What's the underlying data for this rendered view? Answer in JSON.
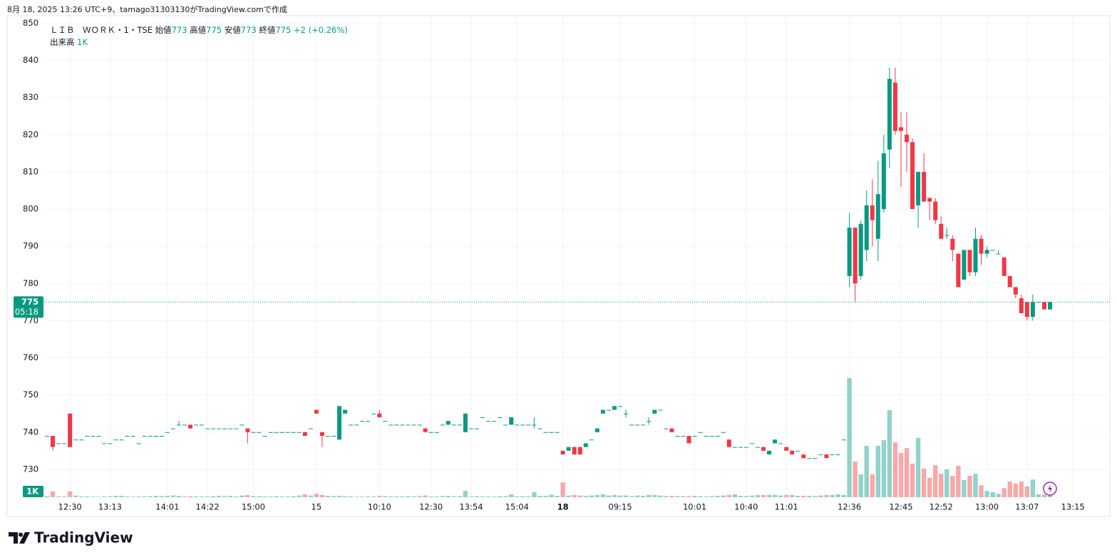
{
  "chart_data": {
    "type": "candlestick",
    "header": "8月 18, 2025 13:26 UTC+9、tamago31303130がTradingView.comで作成",
    "symbol": "ＬＩＢ　ＷＯＲＫ・1・TSE",
    "open_label": "始値",
    "high_label": "高値",
    "low_label": "安値",
    "close_label": "終値",
    "change": "+2 (+0.26%)",
    "volume_label": "出来高",
    "last_volume_label": "1K",
    "countdown": "05:18",
    "logo": "TradingView",
    "up_color": "#089981",
    "down_color": "#f23645",
    "up_volume_color": "#92d2c8",
    "down_volume_color": "#f7a8a8",
    "ylim": [
      722.5,
      852
    ],
    "yticks": [
      730,
      740,
      750,
      760,
      770,
      780,
      790,
      800,
      810,
      820,
      830,
      840,
      850
    ],
    "vlim": [
      0,
      25000
    ],
    "grid": true,
    "xticks": [
      {
        "value": 4,
        "label": "12:30"
      },
      {
        "value": 11,
        "label": "13:13"
      },
      {
        "value": 21,
        "label": "14:01"
      },
      {
        "value": 28,
        "label": "14:22"
      },
      {
        "value": 36,
        "label": "15:00"
      },
      {
        "value": 47,
        "label": "15"
      },
      {
        "value": 58,
        "label": "10:10"
      },
      {
        "value": 67,
        "label": "12:30"
      },
      {
        "value": 74,
        "label": "13:54"
      },
      {
        "value": 82,
        "label": "15:04"
      },
      {
        "value": 90,
        "label": "18",
        "bold": true
      },
      {
        "value": 100,
        "label": "09:15"
      },
      {
        "value": 113,
        "label": "10:01"
      },
      {
        "value": 122,
        "label": "10:40"
      },
      {
        "value": 129,
        "label": "11:01"
      },
      {
        "value": 140,
        "label": "12:36"
      },
      {
        "value": 149,
        "label": "12:45"
      },
      {
        "value": 156,
        "label": "12:52"
      },
      {
        "value": 164,
        "label": "13:00"
      },
      {
        "value": 171,
        "label": "13:07"
      },
      {
        "value": 179,
        "label": "13:15"
      }
    ],
    "open": [
      739,
      739,
      737,
      737,
      745,
      738,
      738,
      739,
      739,
      739,
      737,
      737,
      738,
      738,
      739,
      739,
      737,
      739,
      739,
      739,
      739,
      740,
      741,
      742,
      742,
      742,
      742,
      742,
      741,
      741,
      741,
      741,
      741,
      741,
      742,
      741,
      740,
      740,
      739,
      740,
      740,
      740,
      740,
      740,
      740,
      740,
      741,
      746,
      740,
      739,
      739,
      738,
      745,
      742,
      742,
      743,
      743,
      745,
      745,
      743,
      742,
      742,
      742,
      742,
      742,
      742,
      741,
      740,
      740,
      742,
      742,
      742,
      742,
      740,
      741,
      741,
      744,
      743,
      743,
      744,
      742,
      742,
      742,
      742,
      742,
      742,
      741,
      740,
      740,
      740,
      735,
      735,
      736,
      736,
      736,
      738,
      740,
      745,
      746,
      746,
      747,
      745,
      742,
      742,
      742,
      743,
      745,
      746,
      741,
      741,
      739,
      739,
      739,
      739,
      740,
      739,
      739,
      739,
      740,
      738,
      736,
      736,
      736,
      737,
      736,
      736,
      734,
      737,
      737,
      736,
      735,
      735,
      734,
      733,
      733,
      734,
      734,
      734,
      734,
      738,
      782,
      795,
      782,
      789,
      801,
      792,
      800,
      816,
      834,
      822,
      820,
      818,
      801,
      810,
      803,
      802,
      796,
      793,
      792,
      788,
      781,
      789,
      783,
      792,
      788,
      789,
      788,
      787,
      782,
      779,
      776,
      775,
      771,
      775,
      775,
      773
    ],
    "high": [
      739,
      739,
      737,
      737,
      745,
      738,
      738,
      739,
      739,
      739,
      737,
      737,
      738,
      738,
      739,
      739,
      737,
      739,
      739,
      739,
      739,
      740,
      741,
      743,
      742,
      742,
      742,
      742,
      741,
      741,
      741,
      741,
      741,
      741,
      742,
      741,
      740,
      740,
      739,
      740,
      740,
      740,
      740,
      740,
      740,
      740,
      741,
      746,
      740,
      739,
      739,
      747,
      746,
      742,
      742,
      743,
      743,
      745,
      746,
      743,
      742,
      742,
      742,
      742,
      742,
      742,
      741,
      740,
      740,
      742,
      743,
      742,
      742,
      745,
      741,
      741,
      744,
      743,
      743,
      744,
      742,
      744,
      742,
      742,
      742,
      744,
      741,
      740,
      740,
      740,
      735,
      736,
      736,
      736,
      737,
      738,
      741,
      746,
      746,
      747,
      747,
      746,
      742,
      742,
      742,
      744,
      746,
      746,
      741,
      741,
      739,
      739,
      739,
      739,
      740,
      739,
      739,
      739,
      740,
      738,
      736,
      736,
      736,
      737,
      736,
      736,
      735,
      738,
      737,
      736,
      735,
      735,
      734,
      733,
      733,
      734,
      734,
      734,
      734,
      738,
      799,
      795,
      797,
      805,
      808,
      813,
      820,
      838,
      838,
      826,
      826,
      819,
      810,
      815,
      803,
      803,
      798,
      795,
      793,
      788,
      789,
      789,
      795,
      793,
      790,
      789,
      789,
      787,
      782,
      779,
      777,
      775,
      777,
      775,
      775,
      775
    ],
    "low": [
      739,
      735,
      737,
      737,
      736,
      738,
      738,
      739,
      739,
      739,
      737,
      737,
      738,
      738,
      739,
      739,
      737,
      739,
      739,
      739,
      739,
      740,
      741,
      742,
      742,
      741,
      742,
      742,
      741,
      741,
      741,
      741,
      741,
      741,
      742,
      737,
      740,
      740,
      739,
      740,
      740,
      740,
      740,
      740,
      740,
      739,
      741,
      745,
      736,
      739,
      739,
      738,
      745,
      742,
      742,
      743,
      743,
      745,
      744,
      743,
      742,
      742,
      742,
      742,
      742,
      742,
      740,
      740,
      740,
      742,
      742,
      742,
      742,
      740,
      741,
      741,
      744,
      743,
      743,
      744,
      742,
      742,
      742,
      742,
      742,
      741,
      741,
      740,
      740,
      740,
      734,
      735,
      734,
      734,
      736,
      738,
      740,
      745,
      746,
      746,
      747,
      744,
      742,
      742,
      742,
      742,
      745,
      746,
      741,
      740,
      739,
      739,
      737,
      739,
      740,
      739,
      739,
      739,
      740,
      736,
      736,
      736,
      736,
      737,
      736,
      735,
      734,
      737,
      737,
      735,
      734,
      735,
      733,
      733,
      733,
      734,
      733,
      734,
      734,
      738,
      779,
      775,
      781,
      786,
      790,
      786,
      799,
      811,
      820,
      806,
      810,
      800,
      795,
      802,
      797,
      796,
      792,
      792,
      786,
      779,
      781,
      782,
      782,
      785,
      787,
      789,
      788,
      782,
      779,
      776,
      772,
      770,
      770,
      775,
      773,
      773
    ],
    "close": [
      739,
      736,
      737,
      737,
      736,
      738,
      738,
      739,
      739,
      739,
      737,
      737,
      738,
      738,
      739,
      739,
      737,
      739,
      739,
      739,
      739,
      740,
      741,
      742,
      742,
      741,
      742,
      742,
      741,
      741,
      741,
      741,
      741,
      741,
      742,
      740,
      740,
      740,
      739,
      740,
      740,
      740,
      740,
      740,
      740,
      739,
      741,
      745,
      739,
      739,
      739,
      747,
      746,
      742,
      742,
      743,
      743,
      745,
      744,
      743,
      742,
      742,
      742,
      742,
      742,
      742,
      740,
      740,
      740,
      742,
      743,
      742,
      742,
      745,
      741,
      741,
      744,
      743,
      743,
      744,
      742,
      744,
      742,
      742,
      742,
      742,
      741,
      740,
      740,
      740,
      734,
      736,
      734,
      734,
      737,
      738,
      741,
      746,
      746,
      747,
      747,
      745,
      742,
      742,
      742,
      743,
      746,
      746,
      741,
      740,
      739,
      739,
      737,
      739,
      740,
      739,
      739,
      739,
      740,
      736,
      736,
      736,
      736,
      737,
      736,
      735,
      735,
      738,
      737,
      735,
      734,
      735,
      733,
      733,
      733,
      734,
      733,
      734,
      734,
      738,
      795,
      780,
      796,
      801,
      797,
      804,
      815,
      835,
      821,
      821,
      818,
      800,
      810,
      802,
      802,
      797,
      792,
      793,
      789,
      779,
      789,
      783,
      792,
      788,
      789,
      789,
      788,
      782,
      779,
      777,
      772,
      771,
      775,
      775,
      773,
      775
    ],
    "volume": [
      200,
      1000,
      150,
      150,
      1000,
      300,
      150,
      150,
      100,
      100,
      150,
      150,
      250,
      250,
      150,
      100,
      150,
      150,
      200,
      250,
      200,
      250,
      300,
      250,
      150,
      200,
      150,
      150,
      150,
      200,
      250,
      200,
      250,
      150,
      300,
      400,
      200,
      200,
      150,
      150,
      200,
      150,
      150,
      200,
      300,
      500,
      300,
      600,
      400,
      250,
      200,
      250,
      200,
      150,
      100,
      100,
      150,
      150,
      250,
      200,
      150,
      150,
      150,
      200,
      150,
      200,
      300,
      150,
      150,
      200,
      250,
      150,
      200,
      1100,
      150,
      200,
      150,
      150,
      150,
      200,
      200,
      500,
      150,
      200,
      150,
      900,
      250,
      250,
      450,
      250,
      2600,
      300,
      400,
      300,
      250,
      300,
      400,
      500,
      300,
      400,
      300,
      300,
      200,
      300,
      250,
      400,
      400,
      300,
      200,
      250,
      200,
      200,
      200,
      250,
      200,
      150,
      200,
      250,
      300,
      400,
      500,
      250,
      200,
      300,
      400,
      400,
      400,
      400,
      300,
      400,
      400,
      250,
      250,
      250,
      200,
      300,
      400,
      400,
      500,
      400,
      20900,
      6250,
      4000,
      9000,
      4000,
      9000,
      10000,
      15250,
      9600,
      7750,
      8600,
      5900,
      10400,
      5000,
      3400,
      5600,
      4100,
      4900,
      3750,
      5500,
      3000,
      3750,
      4100,
      2100,
      1100,
      900,
      600,
      1600,
      2750,
      2400,
      2750,
      1900,
      3100,
      500,
      500,
      1000
    ]
  }
}
